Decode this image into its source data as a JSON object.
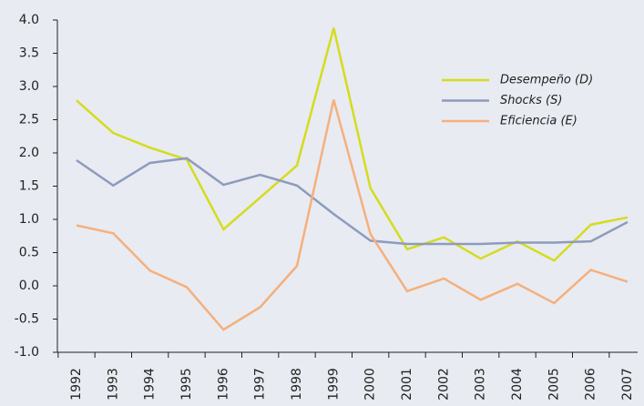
{
  "chart_data": {
    "type": "line",
    "categories": [
      "1992",
      "1993",
      "1994",
      "1995",
      "1996",
      "1997",
      "1998",
      "1999",
      "2000",
      "2001",
      "2002",
      "2003",
      "2004",
      "2005",
      "2006",
      "2007"
    ],
    "series": [
      {
        "name": "Desempeño (D)",
        "color": "#d4dc1e",
        "values": [
          2.79,
          2.3,
          2.08,
          1.9,
          0.85,
          1.33,
          1.81,
          3.88,
          1.47,
          0.55,
          0.73,
          0.41,
          0.67,
          0.38,
          0.92,
          1.03
        ]
      },
      {
        "name": "Shocks (S)",
        "color": "#8e9bbd",
        "values": [
          1.89,
          1.51,
          1.85,
          1.92,
          1.52,
          1.67,
          1.51,
          1.08,
          0.68,
          0.63,
          0.63,
          0.63,
          0.65,
          0.65,
          0.67,
          0.96
        ]
      },
      {
        "name": "Eficiencia (E)",
        "color": "#f5b07c",
        "values": [
          0.91,
          0.79,
          0.23,
          -0.02,
          -0.66,
          -0.32,
          0.3,
          2.8,
          0.78,
          -0.08,
          0.11,
          -0.21,
          0.03,
          -0.26,
          0.24,
          0.06
        ]
      }
    ],
    "ylim": [
      -1,
      4
    ],
    "yticks": [
      {
        "value": -1,
        "label": "-1.0"
      },
      {
        "value": -0.5,
        "label": "-0.5"
      },
      {
        "value": 0,
        "label": "0.0"
      },
      {
        "value": 0.5,
        "label": "0.5"
      },
      {
        "value": 1,
        "label": "1.0"
      },
      {
        "value": 1.5,
        "label": "1.5"
      },
      {
        "value": 2,
        "label": "2.0"
      },
      {
        "value": 2.5,
        "label": "2.5"
      },
      {
        "value": 3,
        "label": "3.0"
      },
      {
        "value": 3.5,
        "label": "3.5"
      },
      {
        "value": 4,
        "label": "4.0"
      }
    ],
    "grid": false,
    "legend": "upper right"
  }
}
